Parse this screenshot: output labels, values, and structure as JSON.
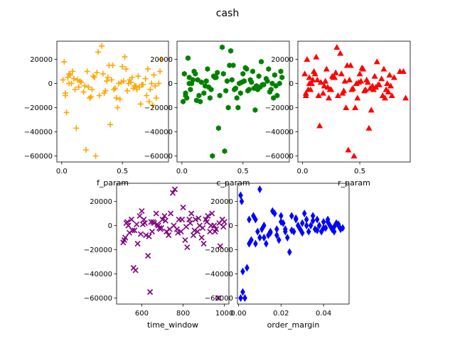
{
  "figure": {
    "title": "cash"
  },
  "chart_data": [
    {
      "type": "scatter",
      "xlabel": "f_param",
      "ylabel": "",
      "xlim": [
        -0.04,
        0.88
      ],
      "ylim": [
        -65000,
        35000
      ],
      "xticks": [
        0.0,
        0.5
      ],
      "xtick_labels": [
        "0.0",
        "0.5"
      ],
      "yticks": [
        -60000,
        -40000,
        -20000,
        0,
        20000
      ],
      "ytick_labels": [
        "−60000",
        "−40000",
        "−20000",
        "0",
        "20000"
      ],
      "grid": false,
      "series": [
        {
          "marker": "plus",
          "color": "#ffa500",
          "x": [
            0.02,
            0.05,
            0.03,
            0.08,
            0.12,
            0.04,
            0.06,
            0.1,
            0.15,
            0.2,
            0.22,
            0.25,
            0.28,
            0.3,
            0.33,
            0.35,
            0.38,
            0.4,
            0.42,
            0.45,
            0.48,
            0.5,
            0.52,
            0.55,
            0.58,
            0.6,
            0.62,
            0.65,
            0.7,
            0.72,
            0.75,
            0.78,
            0.8,
            0.82,
            0.01,
            0.07,
            0.09,
            0.11,
            0.14,
            0.18,
            0.21,
            0.24,
            0.27,
            0.31,
            0.34,
            0.37,
            0.39,
            0.43,
            0.46,
            0.49,
            0.53,
            0.56,
            0.59,
            0.61,
            0.63,
            0.67,
            0.69,
            0.73,
            0.76,
            0.03,
            0.06,
            0.13,
            0.16,
            0.19,
            0.23,
            0.26,
            0.29,
            0.36,
            0.41,
            0.44,
            0.47,
            0.51,
            0.54,
            0.57,
            0.64,
            0.66,
            0.71,
            0.74,
            0.77,
            0.81
          ],
          "y": [
            18000,
            5000,
            -10000,
            0,
            -37000,
            -24000,
            8000,
            4000,
            2000,
            -55000,
            -3000,
            -5000,
            -60000,
            26000,
            31000,
            -8000,
            5000,
            -34000,
            15000,
            -12000,
            -13000,
            14000,
            22000,
            0,
            5000,
            -2000,
            -5000,
            -17000,
            -10000,
            -15000,
            -18000,
            -12000,
            0,
            20000,
            3000,
            7000,
            10000,
            -5000,
            -3000,
            -7000,
            10000,
            -11000,
            5000,
            -10000,
            8000,
            2000,
            15000,
            -5000,
            -20000,
            1000,
            12000,
            3000,
            -4000,
            -2000,
            6000,
            -1000,
            4000,
            -5000,
            7000,
            -8000,
            0,
            3000,
            1000,
            -2000,
            -12000,
            6000,
            9000,
            -6000,
            3000,
            -4000,
            0,
            2000,
            -6000,
            1000,
            -3000,
            -1000,
            12000,
            0,
            -2000,
            10000
          ]
        }
      ]
    },
    {
      "type": "scatter",
      "xlabel": "c_param",
      "ylabel": "",
      "xlim": [
        -0.04,
        0.88
      ],
      "ylim": [
        -65000,
        35000
      ],
      "xticks": [
        0.0,
        0.5
      ],
      "xtick_labels": [
        "0.0",
        "0.5"
      ],
      "yticks": [
        -60000,
        -40000,
        -20000,
        0,
        20000
      ],
      "ytick_labels": [
        "−60000",
        "−40000",
        "−20000",
        "0",
        "20000"
      ],
      "grid": false,
      "series": [
        {
          "marker": "hexagon",
          "color": "#008000",
          "x": [
            0.02,
            0.05,
            0.03,
            0.08,
            0.12,
            0.04,
            0.06,
            0.1,
            0.15,
            0.2,
            0.22,
            0.25,
            0.28,
            0.3,
            0.33,
            0.35,
            0.38,
            0.4,
            0.42,
            0.45,
            0.48,
            0.5,
            0.52,
            0.55,
            0.58,
            0.6,
            0.62,
            0.65,
            0.7,
            0.72,
            0.75,
            0.78,
            0.8,
            0.82,
            0.01,
            0.07,
            0.09,
            0.11,
            0.14,
            0.18,
            0.21,
            0.24,
            0.27,
            0.31,
            0.34,
            0.37,
            0.39,
            0.43,
            0.46,
            0.49,
            0.53,
            0.56,
            0.59,
            0.61,
            0.63,
            0.67,
            0.69,
            0.73,
            0.76,
            0.03,
            0.06,
            0.13,
            0.16,
            0.19,
            0.23,
            0.26,
            0.29,
            0.36,
            0.41,
            0.44,
            0.47,
            0.51,
            0.54,
            0.57,
            0.64,
            0.66,
            0.71,
            0.74,
            0.77,
            0.81
          ],
          "y": [
            8000,
            21000,
            -10000,
            0,
            -14000,
            -12000,
            5000,
            10000,
            -15000,
            2000,
            -3000,
            -60000,
            5000,
            -37000,
            30000,
            -56000,
            -20000,
            27000,
            15000,
            -12000,
            -8000,
            8000,
            13000,
            -5000,
            10000,
            -22000,
            -5000,
            18000,
            2000,
            -7000,
            -12000,
            -10000,
            0,
            5000,
            -15000,
            -5000,
            3000,
            8000,
            -10000,
            -8000,
            12000,
            -5000,
            5000,
            -10000,
            8000,
            2000,
            15000,
            -5000,
            -20000,
            1000,
            12000,
            3000,
            -4000,
            -2000,
            6000,
            -1000,
            4000,
            -5000,
            7000,
            -8000,
            0,
            3000,
            1000,
            -2000,
            -12000,
            6000,
            9000,
            -6000,
            3000,
            -4000,
            0,
            2000,
            -6000,
            1000,
            -3000,
            -1000,
            12000,
            0,
            -2000,
            10000
          ]
        }
      ]
    },
    {
      "type": "scatter",
      "xlabel": "r_param",
      "ylabel": "",
      "xlim": [
        -0.04,
        0.94
      ],
      "ylim": [
        -65000,
        35000
      ],
      "xticks": [
        0.0,
        0.5
      ],
      "xtick_labels": [
        "0.0",
        "0.5"
      ],
      "yticks": [
        -60000,
        -40000,
        -20000,
        0,
        20000
      ],
      "ytick_labels": [
        "−60000",
        "−40000",
        "−20000",
        "0",
        "20000"
      ],
      "grid": false,
      "series": [
        {
          "marker": "triangle",
          "color": "#ff0000",
          "x": [
            0.02,
            0.05,
            0.03,
            0.08,
            0.12,
            0.04,
            0.06,
            0.1,
            0.15,
            0.2,
            0.22,
            0.25,
            0.28,
            0.3,
            0.33,
            0.35,
            0.38,
            0.4,
            0.42,
            0.45,
            0.48,
            0.5,
            0.52,
            0.55,
            0.58,
            0.6,
            0.62,
            0.65,
            0.7,
            0.72,
            0.75,
            0.78,
            0.8,
            0.85,
            0.9,
            0.07,
            0.09,
            0.11,
            0.14,
            0.18,
            0.21,
            0.24,
            0.27,
            0.31,
            0.34,
            0.37,
            0.39,
            0.43,
            0.46,
            0.49,
            0.53,
            0.56,
            0.59,
            0.61,
            0.63,
            0.67,
            0.69,
            0.73,
            0.76,
            0.03,
            0.06,
            0.13,
            0.16,
            0.19,
            0.23,
            0.26,
            0.29,
            0.36,
            0.41,
            0.44,
            0.47,
            0.51,
            0.54,
            0.57,
            0.64,
            0.66,
            0.71,
            0.74,
            0.77,
            0.88
          ],
          "y": [
            8000,
            -5000,
            -10000,
            0,
            22000,
            20000,
            5000,
            10000,
            -35000,
            2000,
            -3000,
            -5000,
            5000,
            30000,
            25000,
            -8000,
            -20000,
            -55000,
            15000,
            -60000,
            -12000,
            8000,
            13000,
            -5000,
            -37000,
            -22000,
            -5000,
            18000,
            -10000,
            -12000,
            -7000,
            -10000,
            5000,
            10000,
            -12000,
            -5000,
            3000,
            8000,
            -10000,
            -8000,
            12000,
            -5000,
            5000,
            -10000,
            8000,
            2000,
            15000,
            -5000,
            -20000,
            1000,
            12000,
            3000,
            -4000,
            -2000,
            6000,
            -1000,
            4000,
            -5000,
            7000,
            -8000,
            0,
            3000,
            1000,
            -2000,
            -12000,
            6000,
            9000,
            -6000,
            3000,
            -4000,
            0,
            2000,
            -6000,
            1000,
            -3000,
            -1000,
            12000,
            0,
            -2000,
            10000
          ]
        }
      ]
    },
    {
      "type": "scatter",
      "xlabel": "time_window",
      "ylabel": "",
      "xlim": [
        478,
        1022
      ],
      "ylim": [
        -65000,
        35000
      ],
      "xticks": [
        600,
        800,
        1000
      ],
      "xtick_labels": [
        "600",
        "800",
        "1000"
      ],
      "yticks": [
        -60000,
        -40000,
        -20000,
        0,
        20000
      ],
      "ytick_labels": [
        "−60000",
        "−40000",
        "−20000",
        "0",
        "20000"
      ],
      "grid": false,
      "series": [
        {
          "marker": "x",
          "color": "#800080",
          "x": [
            510,
            520,
            530,
            540,
            550,
            560,
            570,
            580,
            590,
            600,
            610,
            620,
            630,
            640,
            650,
            660,
            670,
            680,
            690,
            700,
            710,
            720,
            730,
            740,
            750,
            760,
            770,
            780,
            790,
            800,
            810,
            820,
            830,
            840,
            850,
            860,
            870,
            880,
            890,
            900,
            910,
            920,
            930,
            940,
            950,
            960,
            970,
            980,
            990,
            1000,
            515,
            535,
            555,
            575,
            595,
            615,
            635,
            655,
            675,
            695,
            715,
            735,
            755,
            775,
            795,
            815,
            835,
            855,
            875,
            895,
            915,
            935,
            955,
            975,
            995,
            525,
            565,
            605,
            645,
            685
          ],
          "y": [
            -14000,
            -10000,
            3000,
            -6000,
            5000,
            -35000,
            -37000,
            -15000,
            8000,
            12000,
            5000,
            -8000,
            -25000,
            -55000,
            -5000,
            2000,
            10000,
            0,
            -3000,
            5000,
            8000,
            -5000,
            -8000,
            10000,
            27000,
            30000,
            -3000,
            5000,
            -5000,
            15000,
            -12000,
            -18000,
            5000,
            10000,
            -8000,
            5000,
            -5000,
            0,
            -10000,
            -15000,
            5000,
            8000,
            -5000,
            10000,
            0,
            -3000,
            -60000,
            -17000,
            5000,
            3000,
            -12000,
            0,
            -4000,
            1000,
            -7000,
            2000,
            -9000,
            3000,
            1000,
            -2000,
            4000,
            -3000,
            0,
            -6000,
            5000,
            -1000,
            2000,
            -4000,
            6000,
            -2000,
            3000,
            0,
            -5000,
            2000,
            -1000,
            2000,
            -4000,
            1000,
            3000,
            -2000
          ]
        }
      ]
    },
    {
      "type": "scatter",
      "xlabel": "order_margin",
      "ylabel": "",
      "xlim": [
        -0.0005,
        0.052
      ],
      "ylim": [
        -65000,
        35000
      ],
      "xticks": [
        0.0,
        0.02,
        0.04
      ],
      "xtick_labels": [
        "0.00",
        "0.02",
        "0.04"
      ],
      "yticks": [
        -60000,
        -40000,
        -20000,
        0,
        20000
      ],
      "ytick_labels": [
        "−60000",
        "−40000",
        "−20000",
        "0",
        "20000"
      ],
      "grid": false,
      "series": [
        {
          "marker": "diamond",
          "color": "#0000ff",
          "x": [
            0.001,
            0.0015,
            0.002,
            0.003,
            0.004,
            0.005,
            0.006,
            0.007,
            0.008,
            0.009,
            0.01,
            0.011,
            0.012,
            0.013,
            0.014,
            0.015,
            0.016,
            0.017,
            0.018,
            0.019,
            0.02,
            0.021,
            0.022,
            0.023,
            0.024,
            0.025,
            0.026,
            0.027,
            0.028,
            0.029,
            0.03,
            0.031,
            0.032,
            0.033,
            0.034,
            0.035,
            0.036,
            0.037,
            0.038,
            0.039,
            0.04,
            0.041,
            0.042,
            0.043,
            0.044,
            0.045,
            0.046,
            0.047,
            0.048,
            0.049,
            0.001,
            0.002,
            0.005,
            0.008,
            0.01,
            0.012,
            0.015,
            0.018,
            0.02,
            0.022,
            0.025,
            0.027,
            0.03,
            0.032,
            0.035,
            0.037,
            0.04,
            0.042,
            0.045,
            0.047
          ],
          "y": [
            25000,
            20000,
            -55000,
            -60000,
            -35000,
            -15000,
            -12000,
            8000,
            5000,
            -5000,
            30000,
            -3000,
            -10000,
            -15000,
            -8000,
            -5000,
            12000,
            10000,
            -3000,
            -12000,
            8000,
            2000,
            -5000,
            -10000,
            -22000,
            8000,
            -5000,
            5000,
            0,
            -3000,
            2000,
            10000,
            5000,
            -5000,
            0,
            8000,
            -3000,
            5000,
            0,
            -5000,
            3000,
            -2000,
            5000,
            0,
            -3000,
            -5000,
            2000,
            0,
            -3000,
            -2000,
            -60000,
            -38000,
            5000,
            -15000,
            -10000,
            0,
            -6000,
            -8000,
            3000,
            -3000,
            -4000,
            6000,
            -6000,
            0,
            4000,
            -4000,
            -2000,
            3000,
            -1000,
            1000
          ]
        }
      ]
    }
  ]
}
